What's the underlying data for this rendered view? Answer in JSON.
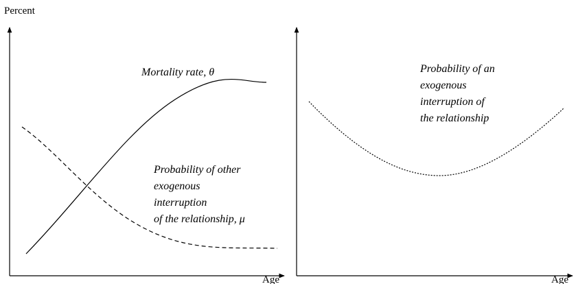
{
  "left_panel": {
    "y_axis_label": "Percent",
    "x_axis_label": "Age",
    "curves": [
      {
        "label_lines": [
          "Mortality rate, θ"
        ]
      },
      {
        "label_lines": [
          "Probability of other",
          "exogenous",
          "interruption",
          "of the relationship, μ"
        ]
      }
    ]
  },
  "right_panel": {
    "x_axis_label": "Age",
    "curves": [
      {
        "label_lines": [
          "Probability of an",
          "exogenous",
          "interruption of",
          "the relationship"
        ]
      }
    ]
  }
}
